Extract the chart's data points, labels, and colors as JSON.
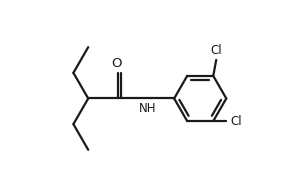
{
  "background_color": "#ffffff",
  "line_color": "#1a1a1a",
  "line_width": 1.6,
  "font_size": 8.5,
  "figsize": [
    2.92,
    1.94
  ],
  "dpi": 100,
  "xlim": [
    0,
    9.5
  ],
  "ylim": [
    0,
    6.5
  ]
}
